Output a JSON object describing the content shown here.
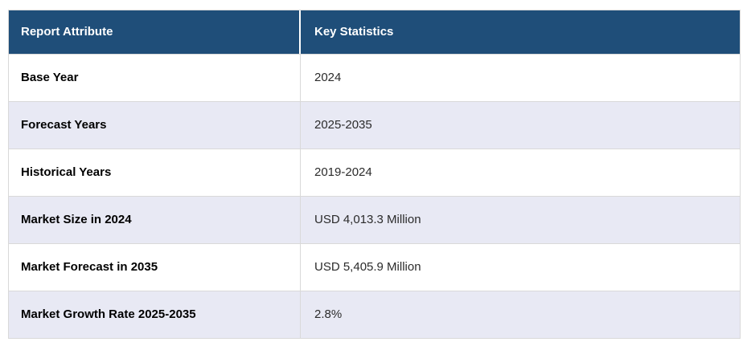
{
  "chart_data": {
    "type": "table",
    "title": "Report Attribute / Key Statistics summary table",
    "columns": [
      "Report Attribute",
      "Key Statistics"
    ],
    "rows": [
      [
        "Base Year",
        "2024"
      ],
      [
        "Forecast Years",
        "2025-2035"
      ],
      [
        "Historical Years",
        "2019-2024"
      ],
      [
        "Market Size in 2024",
        "USD 4,013.3 Million"
      ],
      [
        "Market Forecast in 2035",
        "USD 5,405.9 Million"
      ],
      [
        "Market Growth Rate 2025-2035",
        "2.8%"
      ]
    ],
    "layout": {
      "header_bg": "#1f4e79",
      "header_text_color": "#ffffff",
      "row_bg_white": "#ffffff",
      "row_bg_alt": "#e8e9f4",
      "border_color": "#d9d9d9",
      "attribute_text_color": "#000000",
      "value_text_color": "#2b2b2b"
    }
  }
}
